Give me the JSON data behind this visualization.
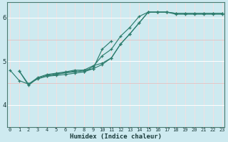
{
  "xlabel": "Humidex (Indice chaleur)",
  "bg_color": "#ceeaf0",
  "line_color": "#2e7d6e",
  "grid_white": "#ffffff",
  "grid_pink": "#e8b8b8",
  "x_values": [
    0,
    1,
    2,
    3,
    4,
    5,
    6,
    7,
    8,
    9,
    10,
    11,
    12,
    13,
    14,
    15,
    16,
    17,
    18,
    19,
    20,
    21,
    22,
    23
  ],
  "lines": [
    [
      null,
      4.78,
      4.45,
      4.62,
      4.68,
      4.72,
      4.74,
      4.76,
      4.8,
      4.83,
      5.28,
      5.47,
      null,
      null,
      null,
      null,
      null,
      null,
      null,
      null,
      null,
      null,
      null,
      null
    ],
    [
      null,
      4.78,
      4.48,
      4.63,
      4.7,
      4.73,
      4.76,
      4.8,
      4.8,
      4.9,
      4.96,
      5.08,
      5.4,
      5.63,
      5.88,
      6.13,
      6.13,
      6.13,
      6.1,
      6.1,
      6.1,
      6.1,
      6.1,
      6.1
    ],
    [
      null,
      null,
      null,
      null,
      4.66,
      4.68,
      4.7,
      4.73,
      4.76,
      4.88,
      5.13,
      5.28,
      5.58,
      5.78,
      6.03,
      6.13,
      6.13,
      6.13,
      6.08,
      6.08,
      6.08,
      6.08,
      6.08,
      6.08
    ],
    [
      4.8,
      4.56,
      4.48,
      4.6,
      4.66,
      4.7,
      4.74,
      4.78,
      4.76,
      4.83,
      4.93,
      5.08,
      5.4,
      5.63,
      5.88,
      6.13,
      6.13,
      6.13,
      6.1,
      6.1,
      6.1,
      6.1,
      6.1,
      6.1
    ]
  ],
  "ylim": [
    3.5,
    6.35
  ],
  "yticks": [
    4,
    5,
    6
  ],
  "ytick_labels": [
    "4",
    "5",
    "6"
  ],
  "xticks": [
    0,
    1,
    2,
    3,
    4,
    5,
    6,
    7,
    8,
    9,
    10,
    11,
    12,
    13,
    14,
    15,
    16,
    17,
    18,
    19,
    20,
    21,
    22,
    23
  ],
  "xlim": [
    -0.3,
    23.3
  ],
  "white_hlines": [
    4.0,
    5.0,
    6.0
  ],
  "pink_hlines": [
    3.5,
    4.5,
    5.5,
    6.0
  ],
  "white_vlines": [
    0,
    1,
    2,
    3,
    4,
    5,
    6,
    7,
    8,
    9,
    10,
    11,
    12,
    13,
    14,
    15,
    16,
    17,
    18,
    19,
    20,
    21,
    22,
    23
  ],
  "pink_vlines": [
    0,
    1,
    2,
    3,
    4,
    5,
    6,
    7,
    8,
    9,
    10,
    11,
    12,
    13,
    14,
    15,
    16,
    17,
    18,
    19,
    20,
    21,
    22,
    23
  ]
}
